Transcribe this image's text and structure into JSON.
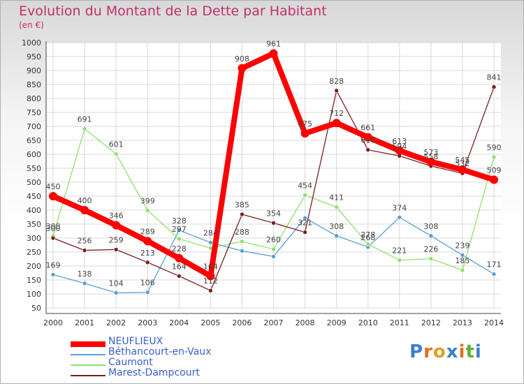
{
  "header": {
    "title": "Evolution du Montant de la Dette par Habitant",
    "unit": "(en €)"
  },
  "brand": {
    "text": "Proxiti",
    "letters": [
      "P",
      "r",
      "o",
      "x",
      "i",
      "t",
      "i"
    ],
    "colors": [
      "#3a7fd0",
      "#e07020",
      "#e0a020",
      "#3a7fd0",
      "#e07020",
      "#60b030",
      "#3a7fd0"
    ]
  },
  "chart_data": {
    "type": "line",
    "title": "Evolution du Montant de la Dette par Habitant",
    "ylabel": "(en €)",
    "x": [
      "2000",
      "2001",
      "2002",
      "2003",
      "2004",
      "2005",
      "2006",
      "2007",
      "2008",
      "2009",
      "2010",
      "2011",
      "2012",
      "2013",
      "2014"
    ],
    "ylim": [
      50,
      1000
    ],
    "yticks": [
      50,
      100,
      150,
      200,
      250,
      300,
      350,
      400,
      450,
      500,
      550,
      600,
      650,
      700,
      750,
      800,
      850,
      900,
      950,
      1000
    ],
    "grid": true,
    "legend_position": "bottom-left",
    "series": [
      {
        "name": "NEUFLIEUX",
        "color": "#ff0000",
        "width": 8,
        "marker": 6,
        "values": [
          450,
          400,
          346,
          289,
          228,
          164,
          908,
          961,
          675,
          712,
          661,
          613,
          573,
          545,
          509
        ],
        "labels": [
          "450",
          "400",
          "346",
          "289",
          "228",
          "164",
          "908",
          "961",
          "675",
          "712",
          "661",
          "613",
          "573",
          "545",
          "509"
        ]
      },
      {
        "name": "Béthancourt-en-Vaux",
        "color": "#5a9fd4",
        "width": 1.3,
        "marker": 3,
        "values": [
          169,
          138,
          104,
          106,
          328,
          284,
          254,
          234,
          372,
          308,
          268,
          374,
          308,
          239,
          171
        ],
        "labels": [
          "169",
          "138",
          "104",
          "106",
          "328",
          "284",
          "",
          "",
          "",
          "308",
          "268",
          "374",
          "308",
          "239",
          "171"
        ]
      },
      {
        "name": "Caumont",
        "color": "#90e070",
        "width": 1.3,
        "marker": 3,
        "values": [
          308,
          691,
          601,
          399,
          297,
          264,
          288,
          260,
          454,
          411,
          278,
          221,
          226,
          185,
          590
        ],
        "labels": [
          "308",
          "691",
          "601",
          "399",
          "297",
          "",
          "288",
          "260",
          "454",
          "411",
          "278",
          "221",
          "226",
          "185",
          "590"
        ]
      },
      {
        "name": "Marest-Dampcourt",
        "color": "#7a1f1f",
        "width": 1.3,
        "marker": 3,
        "values": [
          300,
          256,
          259,
          213,
          164,
          112,
          385,
          354,
          321,
          828,
          616,
          594,
          558,
          532,
          841
        ],
        "labels": [
          "300",
          "256",
          "259",
          "213",
          "164",
          "112",
          "385",
          "354",
          "321",
          "828",
          "616",
          "594",
          "558",
          "532",
          "841"
        ]
      }
    ],
    "extra_labels": [
      "294",
      "234",
      "372",
      "264",
      "264"
    ]
  }
}
